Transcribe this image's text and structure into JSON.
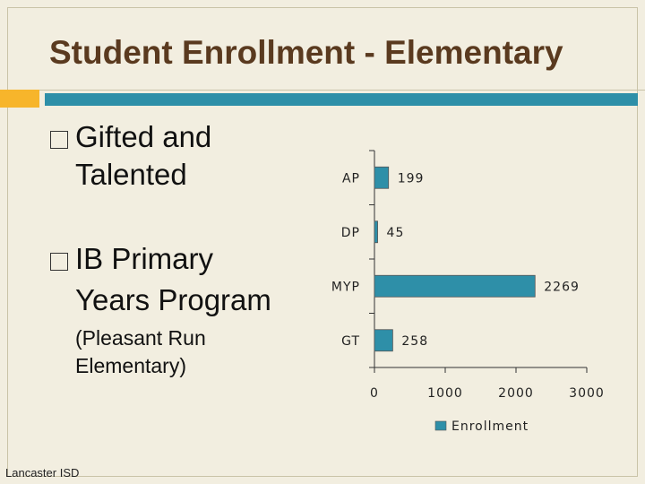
{
  "slide": {
    "title": "Student Enrollment - Elementary",
    "bullets": [
      {
        "line1": "Gifted and",
        "line2": "Talented"
      },
      {
        "line1": "IB Primary",
        "line2": "Years Program"
      }
    ],
    "sub_note_line1": "(Pleasant Run",
    "sub_note_line2": "Elementary)",
    "footer": "Lancaster ISD",
    "accent_gold": "#f7b52b",
    "accent_teal": "#2e8fa8"
  },
  "chart_data": {
    "type": "bar",
    "orientation": "horizontal",
    "categories": [
      "AP",
      "DP",
      "MYP",
      "GT"
    ],
    "series": [
      {
        "name": "Enrollment",
        "values": [
          199,
          45,
          2269,
          258
        ],
        "color": "#2e8fa8"
      }
    ],
    "data_labels": [
      "199",
      "45",
      "2269",
      "258"
    ],
    "xlim": [
      0,
      3000
    ],
    "x_ticks": [
      "0",
      "1000",
      "2000",
      "3000"
    ],
    "grid": false,
    "legend": "bottom"
  }
}
